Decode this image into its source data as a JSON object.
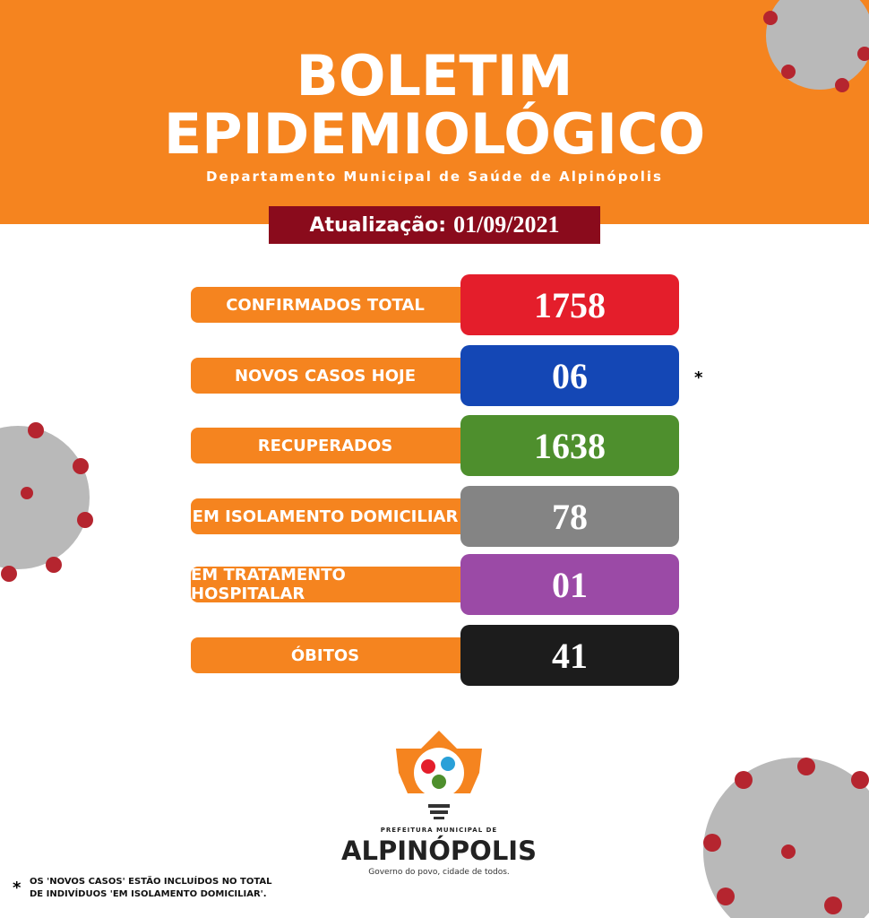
{
  "header": {
    "title": [
      "BOLETIM",
      "EPIDEMIOLÓGICO"
    ],
    "subtitle": "Departamento Municipal de Saúde de Alpinópolis"
  },
  "update": {
    "label": "Atualização:",
    "date": "01/09/2021"
  },
  "rows": [
    {
      "label": "CONFIRMADOS TOTAL",
      "value": "1758",
      "color": "#e41e2b"
    },
    {
      "label": "NOVOS CASOS HOJE",
      "value": "06",
      "color": "#1447b5",
      "note": "*"
    },
    {
      "label": "RECUPERADOS",
      "value": "1638",
      "color": "#4e8f2d"
    },
    {
      "label": "EM ISOLAMENTO DOMICILIAR",
      "value": "78",
      "color": "#848484"
    },
    {
      "label": "EM TRATAMENTO HOSPITALAR",
      "value": "01",
      "color": "#9b4aa6"
    },
    {
      "label": "ÓBITOS",
      "value": "41",
      "color": "#1c1c1c"
    }
  ],
  "logo": {
    "top": "PREFEITURA MUNICIPAL DE",
    "name": "ALPINÓPOLIS",
    "slogan": "Governo do povo, cidade de todos."
  },
  "footnote": {
    "mark": "*",
    "lines": [
      "OS 'NOVOS CASOS' ESTÃO INCLUÍDOS NO TOTAL",
      "DE  INDIVÍDUOS  'EM ISOLAMENTO DOMICILIAR'."
    ]
  }
}
